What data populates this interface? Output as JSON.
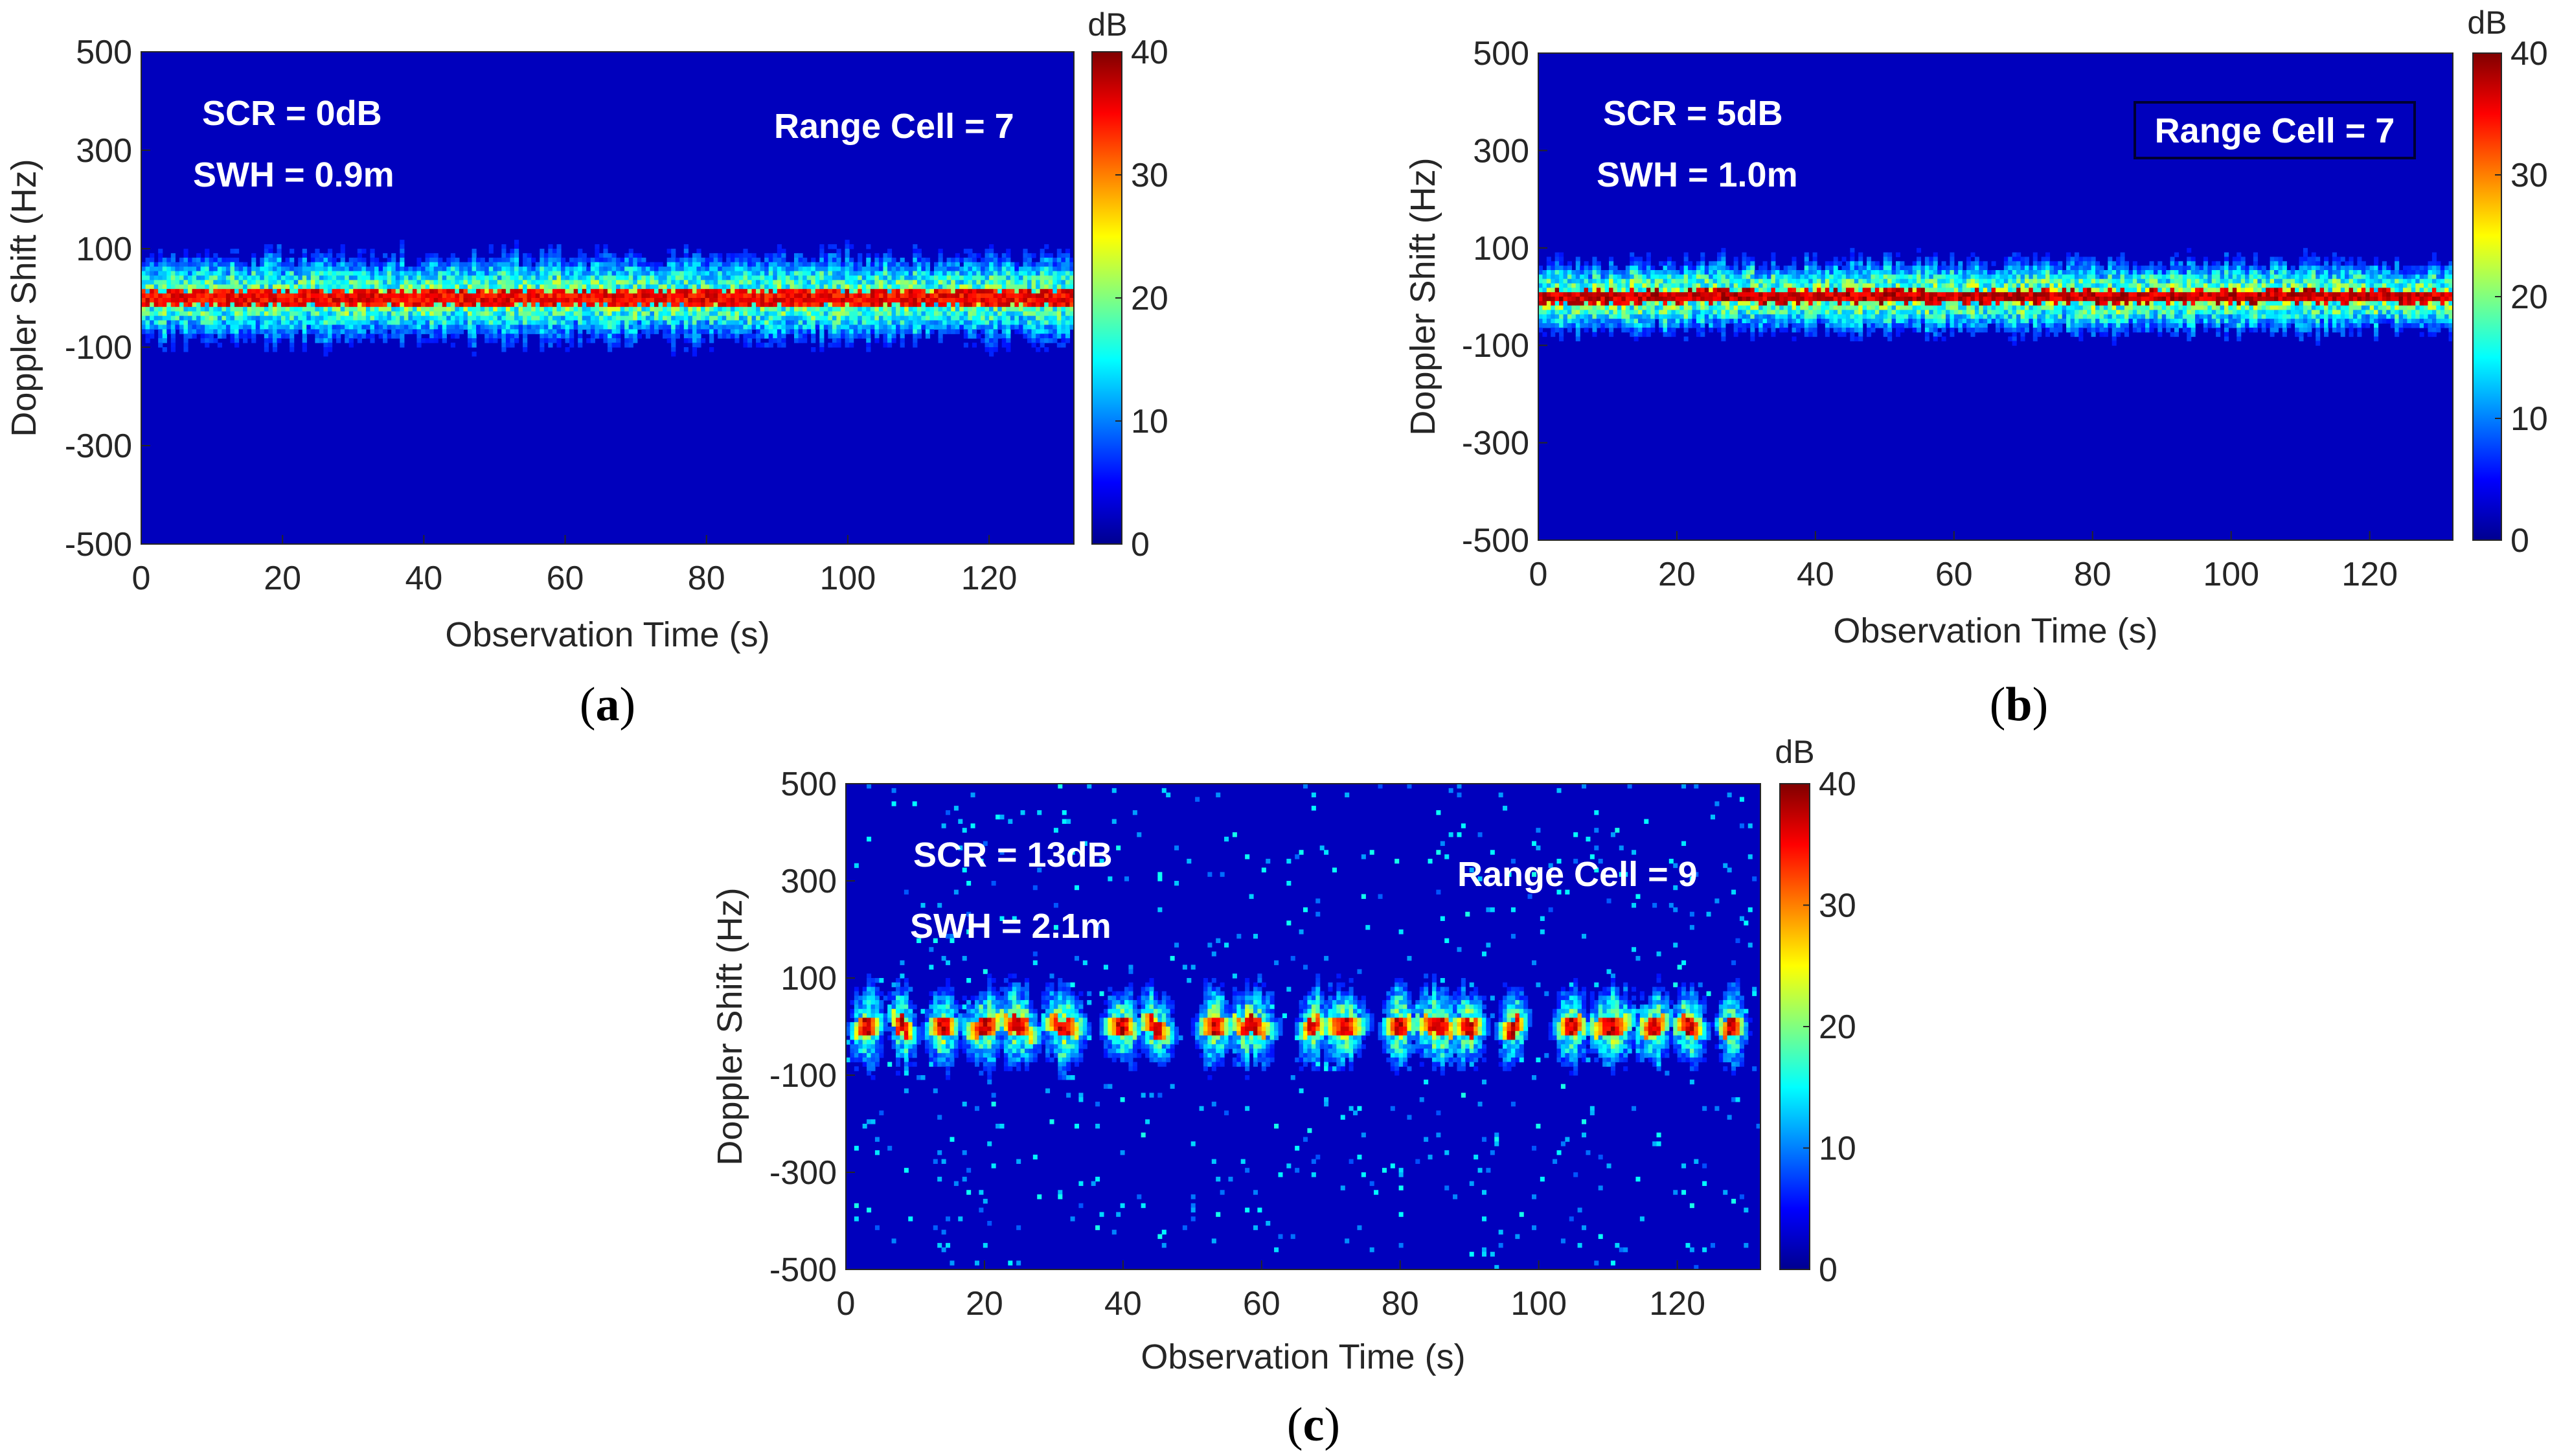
{
  "chart_data": [
    {
      "type": "heatmap",
      "panel": "a",
      "caption": [
        "(",
        "a",
        ")"
      ],
      "xlabel": "Observation Time (s)",
      "ylabel": "Doppler Shift (Hz)",
      "xlim": [
        0,
        132
      ],
      "ylim": [
        -500,
        500
      ],
      "xticks": [
        0,
        20,
        40,
        60,
        80,
        100,
        120
      ],
      "yticks": [
        -500,
        -300,
        -100,
        100,
        300,
        500
      ],
      "colorbar": {
        "title": "dB",
        "range": [
          0,
          40
        ],
        "ticks": [
          0,
          10,
          20,
          30,
          40
        ]
      },
      "annotations": [
        "SCR = 0dB",
        "SWH = 0.9m",
        "Range Cell = 7"
      ],
      "boxed_annotation": false,
      "band": {
        "center_hz": 0,
        "core_halfwidth_hz": 16,
        "spread_halfwidth_hz": 130,
        "peak_db": 38,
        "pattern": "continuous"
      }
    },
    {
      "type": "heatmap",
      "panel": "b",
      "caption": [
        "(",
        "b",
        ")"
      ],
      "xlabel": "Observation Time (s)",
      "ylabel": "Doppler Shift (Hz)",
      "xlim": [
        0,
        132
      ],
      "ylim": [
        -500,
        500
      ],
      "xticks": [
        0,
        20,
        40,
        60,
        80,
        100,
        120
      ],
      "yticks": [
        -500,
        -300,
        -100,
        100,
        300,
        500
      ],
      "colorbar": {
        "title": "dB",
        "range": [
          0,
          40
        ],
        "ticks": [
          0,
          10,
          20,
          30,
          40
        ]
      },
      "annotations": [
        "SCR = 5dB",
        "SWH = 1.0m",
        "Range Cell = 7"
      ],
      "boxed_annotation": true,
      "band": {
        "center_hz": 0,
        "core_halfwidth_hz": 12,
        "spread_halfwidth_hz": 110,
        "peak_db": 40,
        "pattern": "continuous"
      }
    },
    {
      "type": "heatmap",
      "panel": "c",
      "caption": [
        "(",
        "c",
        ")"
      ],
      "xlabel": "Observation Time (s)",
      "ylabel": "Doppler Shift (Hz)",
      "xlim": [
        0,
        132
      ],
      "ylim": [
        -500,
        500
      ],
      "xticks": [
        0,
        20,
        40,
        60,
        80,
        100,
        120
      ],
      "yticks": [
        -500,
        -300,
        -100,
        100,
        300,
        500
      ],
      "colorbar": {
        "title": "dB",
        "range": [
          0,
          40
        ],
        "ticks": [
          0,
          10,
          20,
          30,
          40
        ]
      },
      "annotations": [
        "SCR = 13dB",
        "SWH = 2.1m",
        "Range Cell = 9"
      ],
      "boxed_annotation": false,
      "band": {
        "center_hz": 0,
        "core_halfwidth_hz": 18,
        "spread_halfwidth_hz": 120,
        "peak_db": 40,
        "pattern": "bursts"
      }
    }
  ],
  "colors": {
    "background": "#00008f",
    "axis_text": "#262626",
    "annotation_text": "#ffffff",
    "box_stroke": "#000033"
  }
}
